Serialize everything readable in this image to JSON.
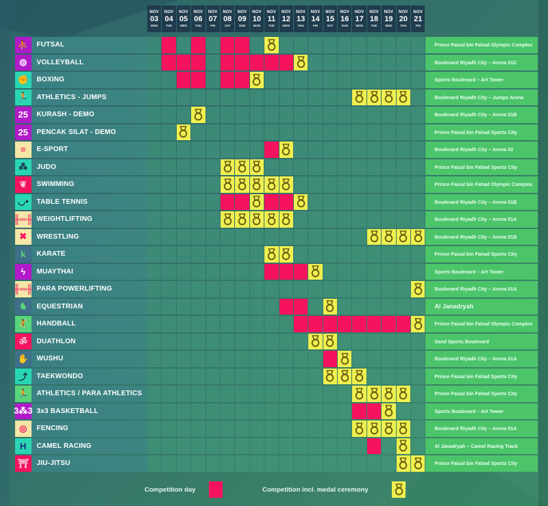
{
  "colors": {
    "competition": "#f5135e",
    "medal": "#eef050",
    "header_bg": "#1f3b4d",
    "venue_bg": "#4cc46a"
  },
  "dates": [
    {
      "month": "NOV",
      "day": "03",
      "weekday": "MON"
    },
    {
      "month": "NOV",
      "day": "04",
      "weekday": "TUE"
    },
    {
      "month": "NOV",
      "day": "05",
      "weekday": "WED"
    },
    {
      "month": "NOV",
      "day": "06",
      "weekday": "THU"
    },
    {
      "month": "NOV",
      "day": "07",
      "weekday": "FRI"
    },
    {
      "month": "NOV",
      "day": "08",
      "weekday": "SAT"
    },
    {
      "month": "NOV",
      "day": "09",
      "weekday": "SUN"
    },
    {
      "month": "NOV",
      "day": "10",
      "weekday": "MON"
    },
    {
      "month": "NOV",
      "day": "11",
      "weekday": "TUE"
    },
    {
      "month": "NOV",
      "day": "12",
      "weekday": "WED"
    },
    {
      "month": "NOV",
      "day": "13",
      "weekday": "THU"
    },
    {
      "month": "NOV",
      "day": "14",
      "weekday": "FRI"
    },
    {
      "month": "NOV",
      "day": "15",
      "weekday": "SAT"
    },
    {
      "month": "NOV",
      "day": "16",
      "weekday": "SUN"
    },
    {
      "month": "NOV",
      "day": "17",
      "weekday": "MON"
    },
    {
      "month": "NOV",
      "day": "18",
      "weekday": "TUE"
    },
    {
      "month": "NOV",
      "day": "19",
      "weekday": "WED"
    },
    {
      "month": "NOV",
      "day": "20",
      "weekday": "THU"
    },
    {
      "month": "NOV",
      "day": "21",
      "weekday": "FRI"
    }
  ],
  "sports": [
    {
      "name": "FUTSAL",
      "icon": "futsal-icon",
      "icon_bg": "#b01ac8",
      "icon_fg": "#ffffff",
      "glyph": "⛹",
      "venue": "Prince Faisal bin Fahad Olympic Complex",
      "competition_days": [
        "04",
        "06",
        "08",
        "09"
      ],
      "medal_days": [
        "11"
      ]
    },
    {
      "name": "VOLLEYBALL",
      "icon": "volleyball-icon",
      "icon_bg": "#b01ac8",
      "icon_fg": "#f0d8ff",
      "glyph": "◍",
      "venue": "Boulevard Riyadh City – Arena 01C",
      "competition_days": [
        "04",
        "05",
        "06",
        "08",
        "09",
        "10",
        "11",
        "12"
      ],
      "medal_days": [
        "13"
      ]
    },
    {
      "name": "BOXING",
      "icon": "boxing-icon",
      "icon_bg": "#29d6b4",
      "icon_fg": "#1a2a4a",
      "glyph": "✊",
      "venue": "Sports Boulevard – Art Tower",
      "competition_days": [
        "05",
        "06",
        "08",
        "09"
      ],
      "medal_days": [
        "10"
      ]
    },
    {
      "name": "ATHLETICS - JUMPS",
      "icon": "athletics-jumps-icon",
      "icon_bg": "#29d6b4",
      "icon_fg": "#1a2a4a",
      "glyph": "🏃",
      "venue": "Boulevard Riyadh City – Jumps Arena",
      "competition_days": [],
      "medal_days": [
        "17",
        "18",
        "19",
        "20"
      ]
    },
    {
      "name": "KURASH - DEMO",
      "icon": "kurash-icon",
      "icon_bg": "#b01ac8",
      "icon_fg": "#ffffff",
      "glyph": "25",
      "venue": "Boulevard Riyadh City – Arena 01B",
      "competition_days": [],
      "medal_days": [
        "06"
      ]
    },
    {
      "name": "PENCAK SILAT - DEMO",
      "icon": "pencak-silat-icon",
      "icon_bg": "#b01ac8",
      "icon_fg": "#ffffff",
      "glyph": "25",
      "venue": "Prince Faisal bin Fahad Sports City",
      "competition_days": [],
      "medal_days": [
        "05"
      ]
    },
    {
      "name": "E-SPORT",
      "icon": "esport-icon",
      "icon_bg": "#f3e6a6",
      "icon_fg": "#f5135e",
      "glyph": "≡",
      "venue": "Boulevard Riyadh City – Arena 02",
      "competition_days": [
        "11"
      ],
      "medal_days": [
        "12"
      ]
    },
    {
      "name": "JUDO",
      "icon": "judo-icon",
      "icon_bg": "#29d6b4",
      "icon_fg": "#1a2a4a",
      "glyph": "⁂",
      "venue": "Prince Faisal bin Fahad Sports City",
      "competition_days": [],
      "medal_days": [
        "08",
        "09",
        "10"
      ]
    },
    {
      "name": "SWIMMING",
      "icon": "swimming-icon",
      "icon_bg": "#f5135e",
      "icon_fg": "#ffd0e0",
      "glyph": "❦",
      "venue": "Prince Faisal bin Fahad Olympic Complex",
      "competition_days": [],
      "medal_days": [
        "08",
        "09",
        "10",
        "11",
        "12"
      ]
    },
    {
      "name": "TABLE TENNIS",
      "icon": "table-tennis-icon",
      "icon_bg": "#29d6b4",
      "icon_fg": "#1a2a4a",
      "glyph": "◡•",
      "venue": "Boulevard Riyadh City – Arena 01B",
      "competition_days": [
        "08",
        "09",
        "11",
        "12"
      ],
      "medal_days": [
        "10",
        "13"
      ]
    },
    {
      "name": "WEIGHTLIFTING",
      "icon": "weightlifting-icon",
      "icon_bg": "#f3e6a6",
      "icon_fg": "#f5135e",
      "glyph": "╫═╫",
      "venue": "Boulevard Riyadh City – Arena 01A",
      "competition_days": [],
      "medal_days": [
        "08",
        "09",
        "10",
        "11",
        "12"
      ]
    },
    {
      "name": "WRESTLING",
      "icon": "wrestling-icon",
      "icon_bg": "#f3e6a6",
      "icon_fg": "#f5135e",
      "glyph": "✖",
      "venue": "Boulevard Riyadh City – Arena 01B",
      "competition_days": [],
      "medal_days": [
        "18",
        "19",
        "20",
        "21"
      ]
    },
    {
      "name": "KARATE",
      "icon": "karate-icon",
      "icon_bg": "#3f6f8a",
      "icon_fg": "#5ad67a",
      "glyph": "k",
      "venue": "Prince Faisal bin Fahad Sports City",
      "competition_days": [],
      "medal_days": [
        "11",
        "12"
      ]
    },
    {
      "name": "MUAYTHAI",
      "icon": "muaythai-icon",
      "icon_bg": "#b01ac8",
      "icon_fg": "#ffffff",
      "glyph": "ϟ",
      "venue": "Sports Boulevard – Art Tower",
      "competition_days": [
        "11",
        "12",
        "13"
      ],
      "medal_days": [
        "14"
      ]
    },
    {
      "name": "PARA POWERLIFTING",
      "icon": "para-powerlifting-icon",
      "icon_bg": "#f3e6a6",
      "icon_fg": "#f5135e",
      "glyph": "╫═╫",
      "venue": "Boulevard Riyadh City – Arena 01A",
      "competition_days": [],
      "medal_days": [
        "21"
      ]
    },
    {
      "name": "EQUESTRIAN",
      "icon": "equestrian-icon",
      "icon_bg": "#3f6f8a",
      "icon_fg": "#5ad67a",
      "glyph": "♞",
      "venue": "Al Janadryah",
      "venue_large": true,
      "competition_days": [
        "12",
        "13"
      ],
      "medal_days": [
        "15"
      ]
    },
    {
      "name": "HANDBALL",
      "icon": "handball-icon",
      "icon_bg": "#5ad67a",
      "icon_fg": "#1a2a4a",
      "glyph": "🤾",
      "venue": "Prince Faisal bin Fahad Olympic Complex",
      "competition_days": [
        "13",
        "14",
        "15",
        "16",
        "17",
        "18",
        "19",
        "20"
      ],
      "medal_days": [
        "21"
      ]
    },
    {
      "name": "DUATHLON",
      "icon": "duathlon-icon",
      "icon_bg": "#f5135e",
      "icon_fg": "#ffd0e0",
      "glyph": "ॐ",
      "venue": "Sand Sports Boulevard",
      "competition_days": [],
      "medal_days": [
        "14",
        "15"
      ]
    },
    {
      "name": "WUSHU",
      "icon": "wushu-icon",
      "icon_bg": "#3f6f8a",
      "icon_fg": "#5ad67a",
      "glyph": "✋",
      "venue": "Boulevard Riyadh City – Arena 01A",
      "competition_days": [
        "15"
      ],
      "medal_days": [
        "16"
      ]
    },
    {
      "name": "TAEKWONDO",
      "icon": "taekwondo-icon",
      "icon_bg": "#29d6b4",
      "icon_fg": "#1a2a4a",
      "glyph": "⤴",
      "venue": "Prince Faisal bin Fahad Sports City",
      "competition_days": [],
      "medal_days": [
        "15",
        "16",
        "17"
      ]
    },
    {
      "name": "ATHLETICS / PARA ATHLETICS",
      "icon": "athletics-para-athletics-icon",
      "icon_bg": "#5ad67a",
      "icon_fg": "#1a2a4a",
      "glyph": "🏃",
      "venue": "Prince Faisal bin Fahad Sports City",
      "competition_days": [],
      "medal_days": [
        "17",
        "18",
        "19",
        "20"
      ]
    },
    {
      "name": "3x3 BASKETBALL",
      "icon": "basketball-3x3-icon",
      "icon_bg": "#b01ac8",
      "icon_fg": "#ffffff",
      "glyph": "3⁂3",
      "venue": "Sports Boulevard – Art Tower",
      "competition_days": [
        "17",
        "18"
      ],
      "medal_days": [
        "19"
      ]
    },
    {
      "name": "FENCING",
      "icon": "fencing-icon",
      "icon_bg": "#f3e6a6",
      "icon_fg": "#f5135e",
      "glyph": "◎",
      "venue": "Boulevard Riyadh City – Arena 01A",
      "competition_days": [],
      "medal_days": [
        "17",
        "18",
        "19",
        "20"
      ]
    },
    {
      "name": "CAMEL RACING",
      "icon": "camel-racing-icon",
      "icon_bg": "#29d6b4",
      "icon_fg": "#1a2a7a",
      "glyph": "H",
      "venue": "Al Janadryah – Camel Racing Track",
      "competition_days": [
        "18"
      ],
      "medal_days": [
        "20"
      ]
    },
    {
      "name": "JIU-JITSU",
      "icon": "jiu-jitsu-icon",
      "icon_bg": "#f5135e",
      "icon_fg": "#ffd0e0",
      "glyph": "⛩",
      "venue": "Prince Faisal bin Fahad Sports City",
      "competition_days": [],
      "medal_days": [
        "20",
        "21"
      ]
    }
  ],
  "legend": {
    "competition_label": "Competition day",
    "medal_label": "Competition incl. medal ceremony"
  }
}
